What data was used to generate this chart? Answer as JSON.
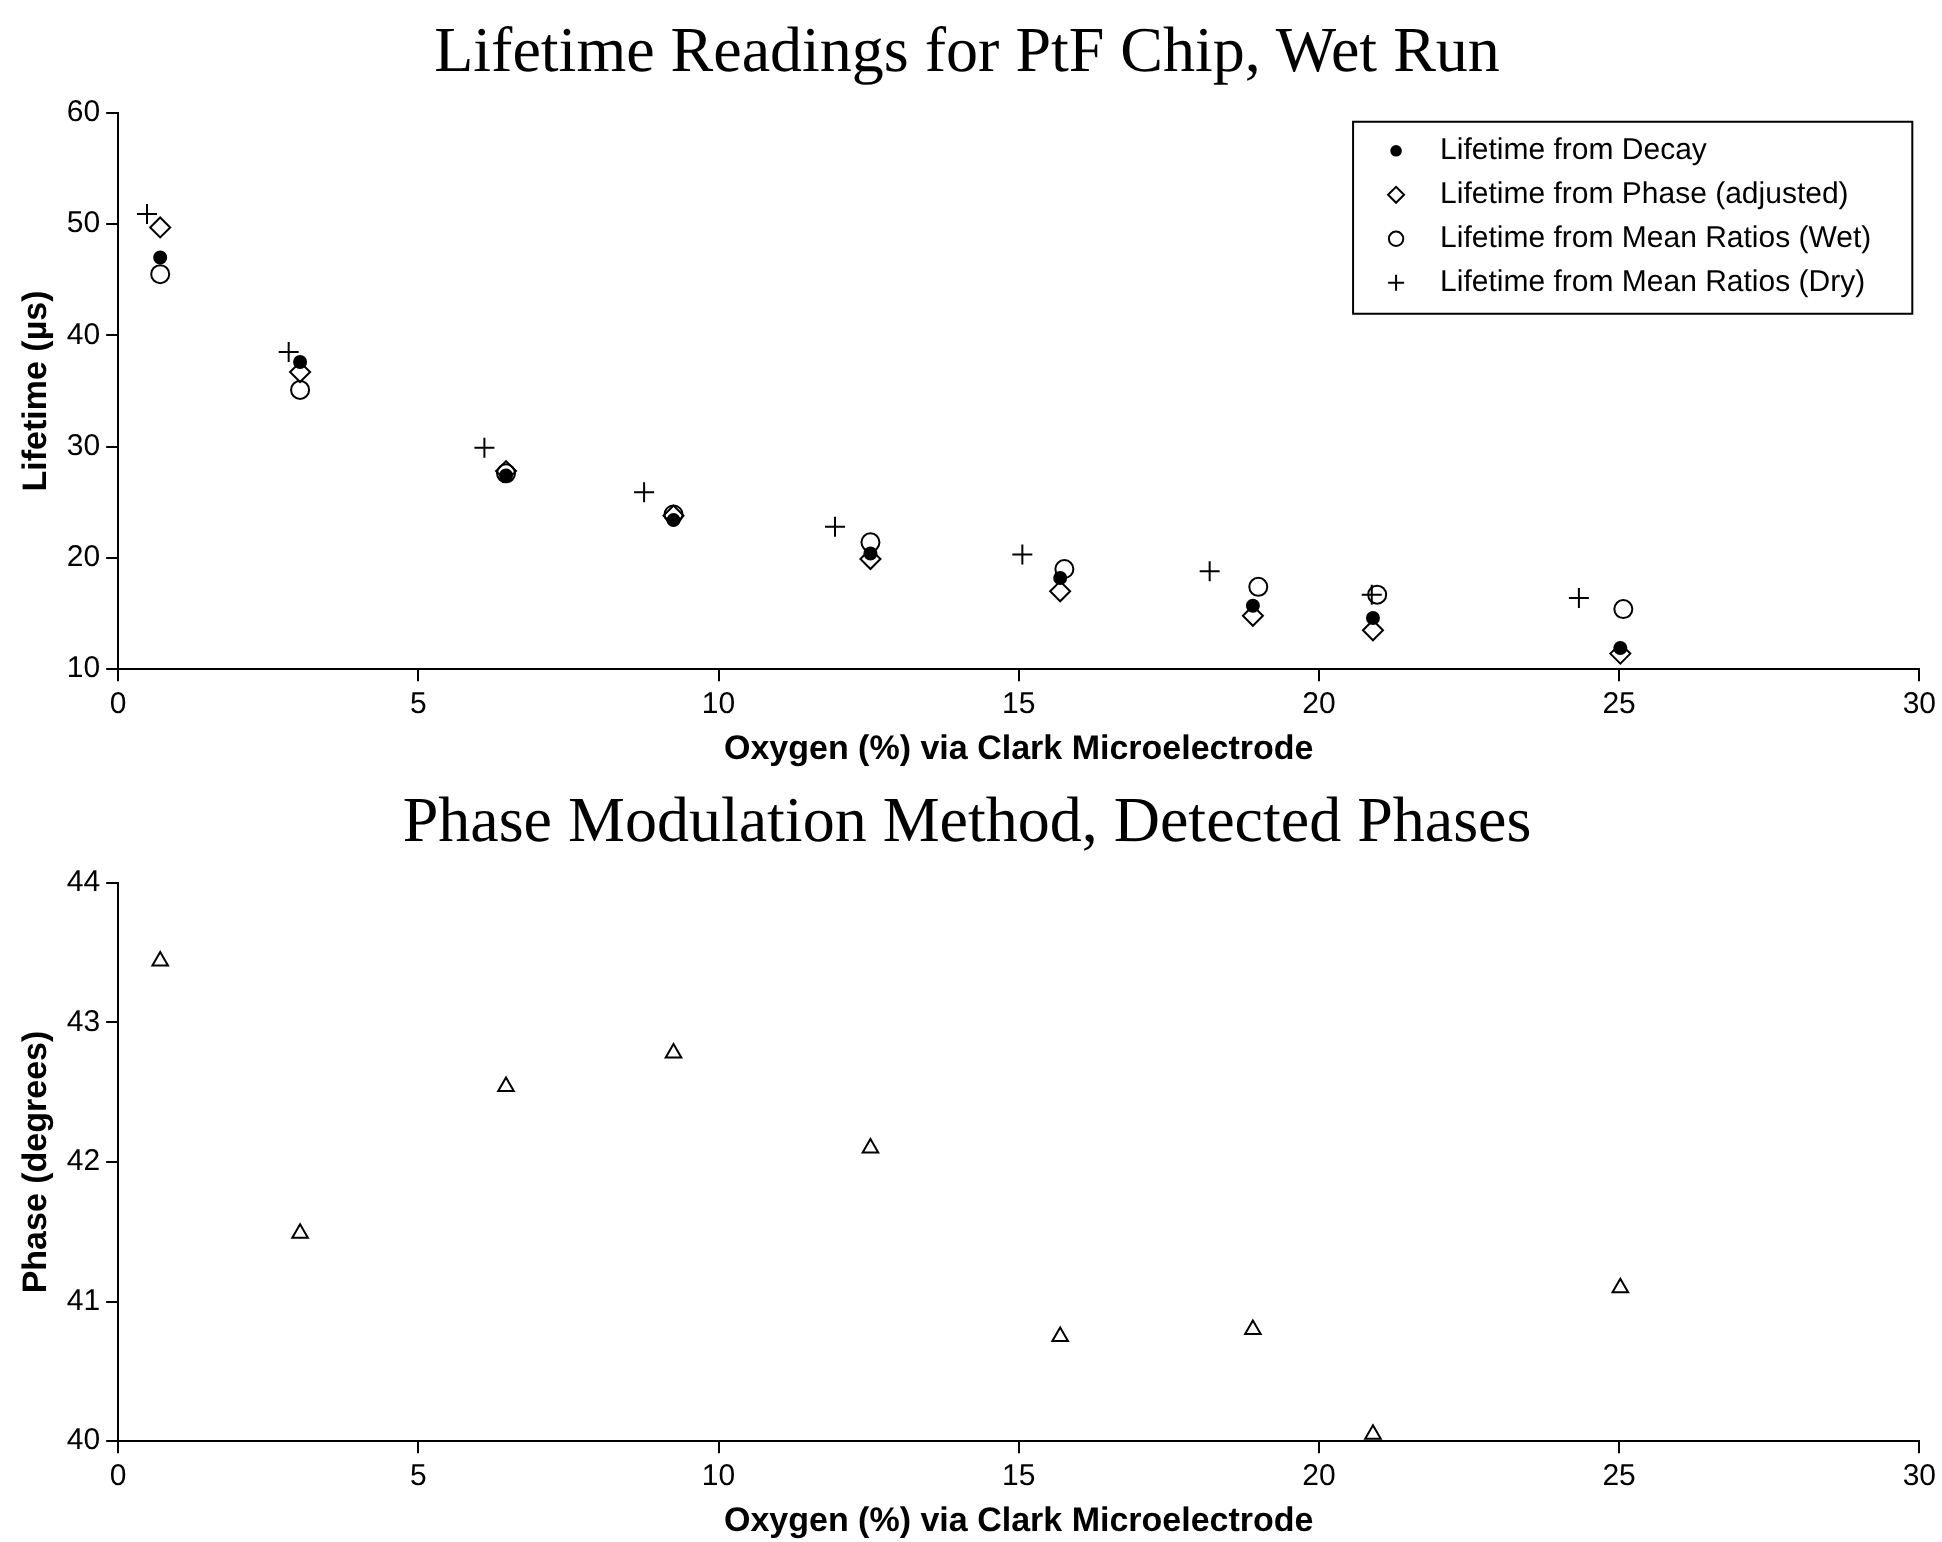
{
  "chart_data": [
    {
      "type": "scatter",
      "title": "Lifetime Readings for PtF Chip, Wet Run",
      "xlabel": "Oxygen (%) via Clark Microelectrode",
      "ylabel": "Lifetime (µs)",
      "xlim": [
        0,
        30
      ],
      "xticks": [
        0,
        5,
        10,
        15,
        20,
        25,
        30
      ],
      "ylim": [
        10,
        60
      ],
      "yticks": [
        10,
        20,
        30,
        40,
        50,
        60
      ],
      "grid": false,
      "legend": "top right",
      "series": [
        {
          "name": "Lifetime from Decay",
          "color": "#000000",
          "marker": "dot",
          "x": [
            0.7,
            3.03,
            6.46,
            9.25,
            12.53,
            15.69,
            18.9,
            20.9,
            25.02
          ],
          "values": [
            47.0,
            37.6,
            27.4,
            23.4,
            20.4,
            18.2,
            15.7,
            14.6,
            11.9
          ]
        },
        {
          "name": "Lifetime from Phase (adjusted)",
          "color": "#000000",
          "marker": "diamond",
          "x": [
            0.7,
            3.03,
            6.46,
            9.25,
            12.53,
            15.69,
            18.9,
            20.9,
            25.02
          ],
          "values": [
            49.7,
            36.7,
            27.8,
            23.8,
            19.9,
            17.0,
            14.8,
            13.5,
            11.4
          ]
        },
        {
          "name": "Lifetime from Mean Ratios (Wet)",
          "color": "#000000",
          "marker": "circle",
          "x": [
            0.7,
            3.03,
            6.46,
            9.25,
            12.53,
            15.76,
            18.99,
            20.97,
            25.07
          ],
          "values": [
            45.5,
            35.1,
            27.6,
            23.9,
            21.4,
            19.0,
            17.4,
            16.7,
            15.4
          ]
        },
        {
          "name": "Lifetime from Mean Ratios (Dry)",
          "color": "#000000",
          "marker": "cross",
          "x": [
            0.48,
            2.84,
            6.1,
            8.76,
            11.94,
            15.06,
            18.18,
            20.88,
            24.33
          ],
          "values": [
            50.9,
            38.5,
            29.9,
            25.9,
            22.8,
            20.3,
            18.8,
            16.7,
            16.4
          ]
        }
      ]
    },
    {
      "type": "scatter",
      "title": "Phase Modulation Method, Detected Phases",
      "xlabel": "Oxygen (%) via Clark Microelectrode",
      "ylabel": "Phase (degrees)",
      "xlim": [
        0,
        30
      ],
      "xticks": [
        0,
        5,
        10,
        15,
        20,
        25,
        30
      ],
      "ylim": [
        40,
        44
      ],
      "yticks": [
        40,
        41,
        42,
        43,
        44
      ],
      "grid": false,
      "legend": false,
      "series": [
        {
          "color": "#000000",
          "marker": "triangle",
          "x": [
            0.7,
            3.03,
            6.46,
            9.25,
            12.53,
            15.69,
            18.9,
            20.9,
            25.02
          ],
          "values": [
            43.44,
            41.49,
            42.54,
            42.78,
            42.1,
            40.75,
            40.8,
            40.05,
            41.1
          ]
        }
      ]
    }
  ]
}
